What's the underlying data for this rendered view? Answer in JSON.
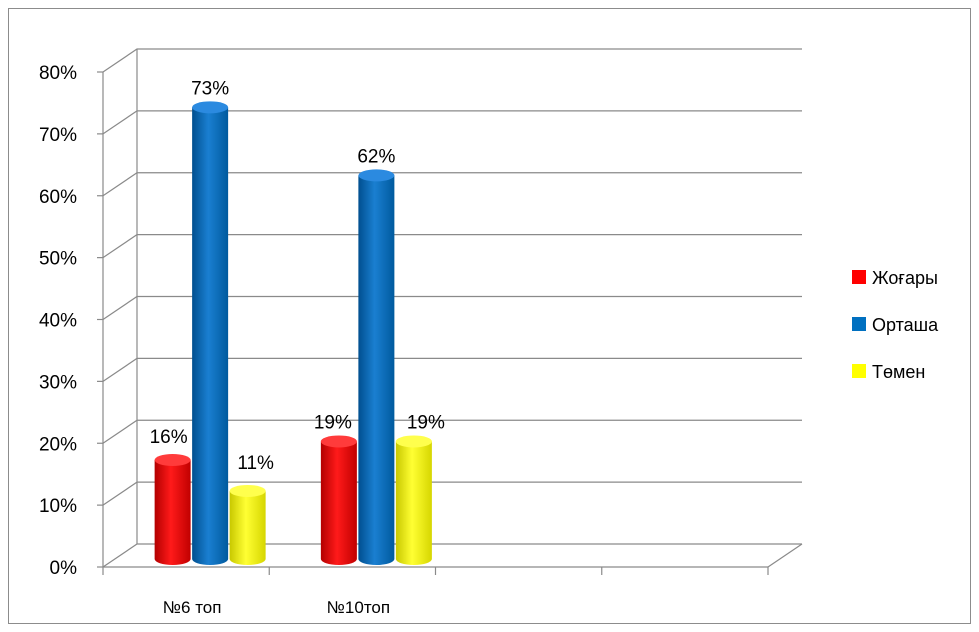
{
  "chart_data": {
    "type": "bar",
    "title": "",
    "xlabel": "",
    "ylabel": "",
    "categories": [
      "№6 топ",
      "№10топ",
      "",
      ""
    ],
    "series": [
      {
        "name": "Жоғары",
        "values": [
          16,
          19,
          null,
          null
        ],
        "labels": [
          "16%",
          "19%",
          "",
          ""
        ],
        "color": "#ff0000"
      },
      {
        "name": "Орташа",
        "values": [
          73,
          62,
          null,
          null
        ],
        "labels": [
          "73%",
          "62%",
          "",
          ""
        ],
        "color": "#0070c0"
      },
      {
        "name": "Төмен",
        "values": [
          11,
          19,
          null,
          null
        ],
        "labels": [
          "11%",
          "19%",
          "",
          ""
        ],
        "color": "#ffff00"
      }
    ],
    "ylim": [
      0,
      80
    ],
    "yticks": [
      "0%",
      "10%",
      "20%",
      "30%",
      "40%",
      "50%",
      "60%",
      "70%",
      "80%"
    ],
    "grid": true,
    "legend_position": "right"
  }
}
